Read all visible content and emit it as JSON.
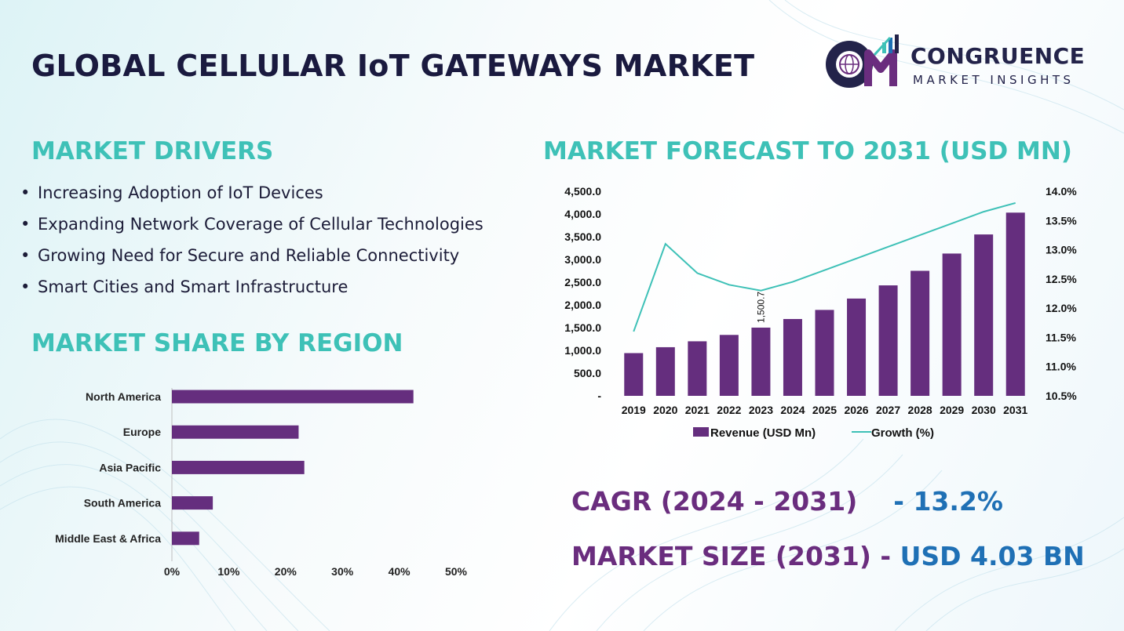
{
  "header": {
    "title": "GLOBAL CELLULAR IoT GATEWAYS MARKET"
  },
  "logo": {
    "brand_line1": "CONGRUENCE",
    "brand_line2": "MARKET INSIGHTS",
    "mark_letters": "CM"
  },
  "drivers": {
    "heading": "MARKET DRIVERS",
    "items": [
      "Increasing Adoption of IoT Devices",
      "Expanding Network Coverage of Cellular Technologies",
      "Growing Need for Secure and Reliable Connectivity",
      "Smart Cities and Smart Infrastructure"
    ]
  },
  "region": {
    "heading": "MARKET SHARE BY REGION"
  },
  "forecast": {
    "heading": "MARKET FORECAST TO 2031 (USD MN)"
  },
  "summary": {
    "cagr_label": "CAGR (2024 - 2031)",
    "cagr_value": "- 13.2%",
    "size_label": "MARKET SIZE (2031)",
    "size_sep": " - ",
    "size_value": "USD 4.03 BN"
  },
  "colors": {
    "bar": "#652e7e",
    "line": "#3ec1b7",
    "title": "#1a1a3f",
    "accent_teal": "#3ec1b7",
    "accent_purple": "#6a2d7e",
    "accent_blue": "#1f70b5"
  },
  "chart_data": [
    {
      "type": "bar",
      "orientation": "horizontal",
      "title": "",
      "categories": [
        "North America",
        "Europe",
        "Asia Pacific",
        "South America",
        "Middle East & Africa"
      ],
      "values": [
        42.5,
        22.3,
        23.3,
        7.2,
        4.8
      ],
      "xlim": [
        0,
        50
      ],
      "xticks": [
        "0%",
        "10%",
        "20%",
        "30%",
        "40%",
        "50%"
      ],
      "grid": false,
      "legend": "none"
    },
    {
      "type": "bar",
      "title": "",
      "categories": [
        "2019",
        "2020",
        "2021",
        "2022",
        "2023",
        "2024",
        "2025",
        "2026",
        "2027",
        "2028",
        "2029",
        "2030",
        "2031"
      ],
      "series": [
        {
          "name": "Revenue (USD Mn)",
          "type": "bar",
          "axis": "left",
          "values": [
            940,
            1070,
            1200,
            1340,
            1500.7,
            1690,
            1890,
            2140,
            2430,
            2750,
            3130,
            3550,
            4030
          ]
        },
        {
          "name": "Growth (%)",
          "type": "line",
          "axis": "right",
          "values": [
            11.6,
            13.1,
            12.6,
            12.4,
            12.3,
            12.45,
            12.65,
            12.85,
            13.05,
            13.25,
            13.45,
            13.65,
            13.8
          ]
        }
      ],
      "data_labels": [
        {
          "category": "2023",
          "text": "1,500.7"
        }
      ],
      "ylim_left": [
        0,
        4500
      ],
      "yticks_left": [
        "-",
        "500.0",
        "1,000.0",
        "1,500.0",
        "2,000.0",
        "2,500.0",
        "3,000.0",
        "3,500.0",
        "4,000.0",
        "4,500.0"
      ],
      "ylim_right": [
        10.5,
        14.0
      ],
      "yticks_right": [
        "10.5%",
        "11.0%",
        "11.5%",
        "12.0%",
        "12.5%",
        "13.0%",
        "13.5%",
        "14.0%"
      ],
      "grid": false,
      "legend": "bottom"
    }
  ]
}
